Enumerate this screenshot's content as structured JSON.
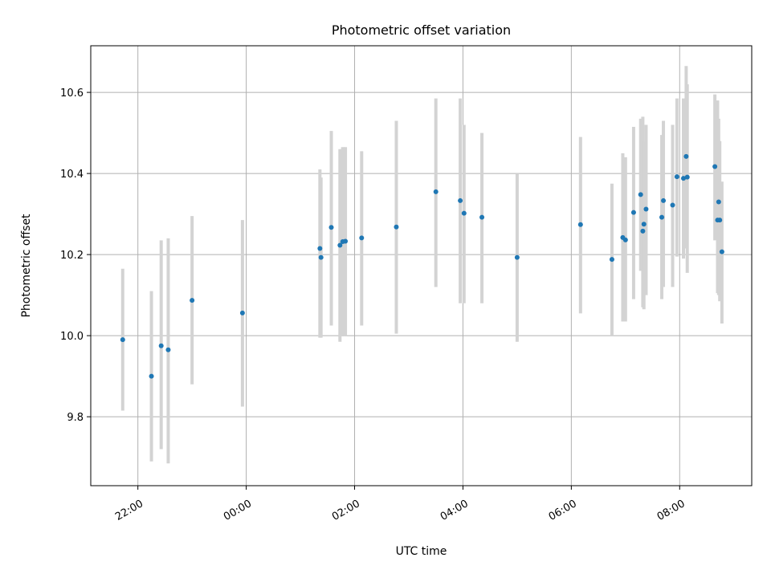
{
  "chart_data": {
    "type": "scatter",
    "title": "Photometric offset variation",
    "xlabel": "UTC time",
    "ylabel": "Photometric offset",
    "x_axis_type": "time",
    "x_start": "21:00",
    "xlim_hours": [
      21.13,
      33.33
    ],
    "ylim": [
      9.63,
      10.715
    ],
    "x_ticks": [
      {
        "hour": 22,
        "label": "22:00"
      },
      {
        "hour": 24,
        "label": "00:00"
      },
      {
        "hour": 26,
        "label": "02:00"
      },
      {
        "hour": 28,
        "label": "04:00"
      },
      {
        "hour": 30,
        "label": "06:00"
      },
      {
        "hour": 32,
        "label": "08:00"
      }
    ],
    "y_ticks": [
      {
        "value": 9.8,
        "label": "9.8"
      },
      {
        "value": 10.0,
        "label": "10.0"
      },
      {
        "value": 10.2,
        "label": "10.2"
      },
      {
        "value": 10.4,
        "label": "10.4"
      },
      {
        "value": 10.6,
        "label": "10.6"
      }
    ],
    "grid": true,
    "point_color": "#1f77b4",
    "errorbar_color": "#d3d3d3",
    "points": [
      {
        "x": 21.72,
        "y": 9.99,
        "lo": 9.815,
        "hi": 10.165
      },
      {
        "x": 22.25,
        "y": 9.9,
        "lo": 9.69,
        "hi": 10.11
      },
      {
        "x": 22.43,
        "y": 9.975,
        "lo": 9.72,
        "hi": 10.235
      },
      {
        "x": 22.56,
        "y": 9.965,
        "lo": 9.685,
        "hi": 10.24
      },
      {
        "x": 23.0,
        "y": 10.087,
        "lo": 9.88,
        "hi": 10.295
      },
      {
        "x": 23.93,
        "y": 10.056,
        "lo": 9.825,
        "hi": 10.285
      },
      {
        "x": 25.36,
        "y": 10.215,
        "lo": 9.995,
        "hi": 10.41
      },
      {
        "x": 25.38,
        "y": 10.193,
        "lo": 9.995,
        "hi": 10.39
      },
      {
        "x": 25.57,
        "y": 10.267,
        "lo": 10.025,
        "hi": 10.505
      },
      {
        "x": 25.73,
        "y": 10.223,
        "lo": 9.985,
        "hi": 10.46
      },
      {
        "x": 25.78,
        "y": 10.232,
        "lo": 10.0,
        "hi": 10.465
      },
      {
        "x": 25.83,
        "y": 10.233,
        "lo": 10.0,
        "hi": 10.465
      },
      {
        "x": 26.13,
        "y": 10.241,
        "lo": 10.025,
        "hi": 10.455
      },
      {
        "x": 26.77,
        "y": 10.268,
        "lo": 10.005,
        "hi": 10.53
      },
      {
        "x": 27.5,
        "y": 10.355,
        "lo": 10.12,
        "hi": 10.585
      },
      {
        "x": 27.95,
        "y": 10.333,
        "lo": 10.08,
        "hi": 10.585
      },
      {
        "x": 28.02,
        "y": 10.302,
        "lo": 10.08,
        "hi": 10.52
      },
      {
        "x": 28.35,
        "y": 10.292,
        "lo": 10.08,
        "hi": 10.5
      },
      {
        "x": 29.0,
        "y": 10.193,
        "lo": 9.985,
        "hi": 10.4
      },
      {
        "x": 30.17,
        "y": 10.274,
        "lo": 10.055,
        "hi": 10.49
      },
      {
        "x": 30.75,
        "y": 10.188,
        "lo": 10.0,
        "hi": 10.375
      },
      {
        "x": 30.95,
        "y": 10.242,
        "lo": 10.035,
        "hi": 10.45
      },
      {
        "x": 31.0,
        "y": 10.236,
        "lo": 10.035,
        "hi": 10.44
      },
      {
        "x": 31.15,
        "y": 10.304,
        "lo": 10.09,
        "hi": 10.515
      },
      {
        "x": 31.28,
        "y": 10.348,
        "lo": 10.16,
        "hi": 10.535
      },
      {
        "x": 31.32,
        "y": 10.258,
        "lo": 10.07,
        "hi": 10.54
      },
      {
        "x": 31.34,
        "y": 10.275,
        "lo": 10.065,
        "hi": 10.48
      },
      {
        "x": 31.38,
        "y": 10.312,
        "lo": 10.1,
        "hi": 10.52
      },
      {
        "x": 31.67,
        "y": 10.292,
        "lo": 10.09,
        "hi": 10.495
      },
      {
        "x": 31.7,
        "y": 10.333,
        "lo": 10.12,
        "hi": 10.53
      },
      {
        "x": 31.87,
        "y": 10.322,
        "lo": 10.12,
        "hi": 10.52
      },
      {
        "x": 31.95,
        "y": 10.392,
        "lo": 10.195,
        "hi": 10.585
      },
      {
        "x": 32.07,
        "y": 10.388,
        "lo": 10.19,
        "hi": 10.585
      },
      {
        "x": 32.12,
        "y": 10.442,
        "lo": 10.215,
        "hi": 10.665
      },
      {
        "x": 32.14,
        "y": 10.391,
        "lo": 10.155,
        "hi": 10.62
      },
      {
        "x": 32.65,
        "y": 10.417,
        "lo": 10.235,
        "hi": 10.595
      },
      {
        "x": 32.7,
        "y": 10.285,
        "lo": 10.105,
        "hi": 10.58
      },
      {
        "x": 32.72,
        "y": 10.33,
        "lo": 10.1,
        "hi": 10.535
      },
      {
        "x": 32.74,
        "y": 10.285,
        "lo": 10.085,
        "hi": 10.48
      },
      {
        "x": 32.78,
        "y": 10.207,
        "lo": 10.03,
        "hi": 10.38
      }
    ]
  }
}
